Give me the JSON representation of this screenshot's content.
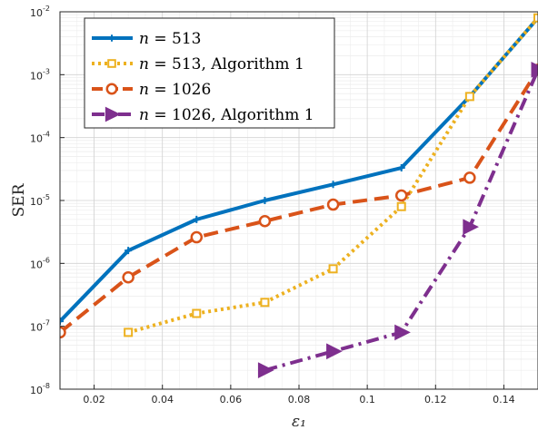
{
  "chart_data": {
    "type": "line",
    "ylabel": "SER",
    "xlabel": "ε₁",
    "xlim": [
      0.01,
      0.15
    ],
    "ylim": [
      1e-08,
      0.01
    ],
    "yscale": "log",
    "grid": true,
    "minor_grid": true,
    "legend_position": "top-left",
    "x_ticks": [
      0.02,
      0.04,
      0.06,
      0.08,
      0.1,
      0.12,
      0.14
    ],
    "x_tick_labels": [
      "0.02",
      "0.04",
      "0.06",
      "0.08",
      "0.1",
      "0.12",
      "0.14"
    ],
    "y_ticks": [
      1e-08,
      1e-07,
      1e-06,
      1e-05,
      0.0001,
      0.001,
      0.01
    ],
    "y_tick_base": "10",
    "y_tick_exponents": [
      "-8",
      "-7",
      "-6",
      "-5",
      "-4",
      "-3",
      "-2"
    ],
    "series": [
      {
        "name": "n = 513",
        "legend_var": "n",
        "legend_rest": " = 513",
        "color": "#0072BD",
        "style": "solid",
        "marker": "plus",
        "x": [
          0.01,
          0.03,
          0.05,
          0.07,
          0.09,
          0.11,
          0.13,
          0.15
        ],
        "y": [
          1.2e-07,
          1.6e-06,
          5e-06,
          1e-05,
          1.8e-05,
          3.3e-05,
          0.00045,
          0.008
        ]
      },
      {
        "name": "n = 513, Algorithm 1",
        "legend_var": "n",
        "legend_rest": " = 513, Algorithm 1",
        "color": "#EDB120",
        "style": "dotted",
        "marker": "square",
        "x": [
          0.03,
          0.05,
          0.07,
          0.09,
          0.11,
          0.13,
          0.15
        ],
        "y": [
          8e-08,
          1.6e-07,
          2.4e-07,
          8.2e-07,
          8e-06,
          0.00045,
          0.008
        ]
      },
      {
        "name": "n = 1026",
        "legend_var": "n",
        "legend_rest": " = 1026",
        "color": "#D95319",
        "style": "dashed",
        "marker": "circle",
        "x": [
          0.01,
          0.03,
          0.05,
          0.07,
          0.09,
          0.11,
          0.13,
          0.15
        ],
        "y": [
          8e-08,
          6e-07,
          2.6e-06,
          4.7e-06,
          8.6e-06,
          1.2e-05,
          2.3e-05,
          0.0012
        ]
      },
      {
        "name": "n = 1026, Algorithm 1",
        "legend_var": "n",
        "legend_rest": " = 1026, Algorithm 1",
        "color": "#7E2F8E",
        "style": "dashdot",
        "marker": "triangle-right",
        "x": [
          0.07,
          0.09,
          0.11,
          0.13,
          0.15
        ],
        "y": [
          2e-08,
          4e-08,
          8e-08,
          3.8e-06,
          0.0012
        ]
      }
    ]
  }
}
